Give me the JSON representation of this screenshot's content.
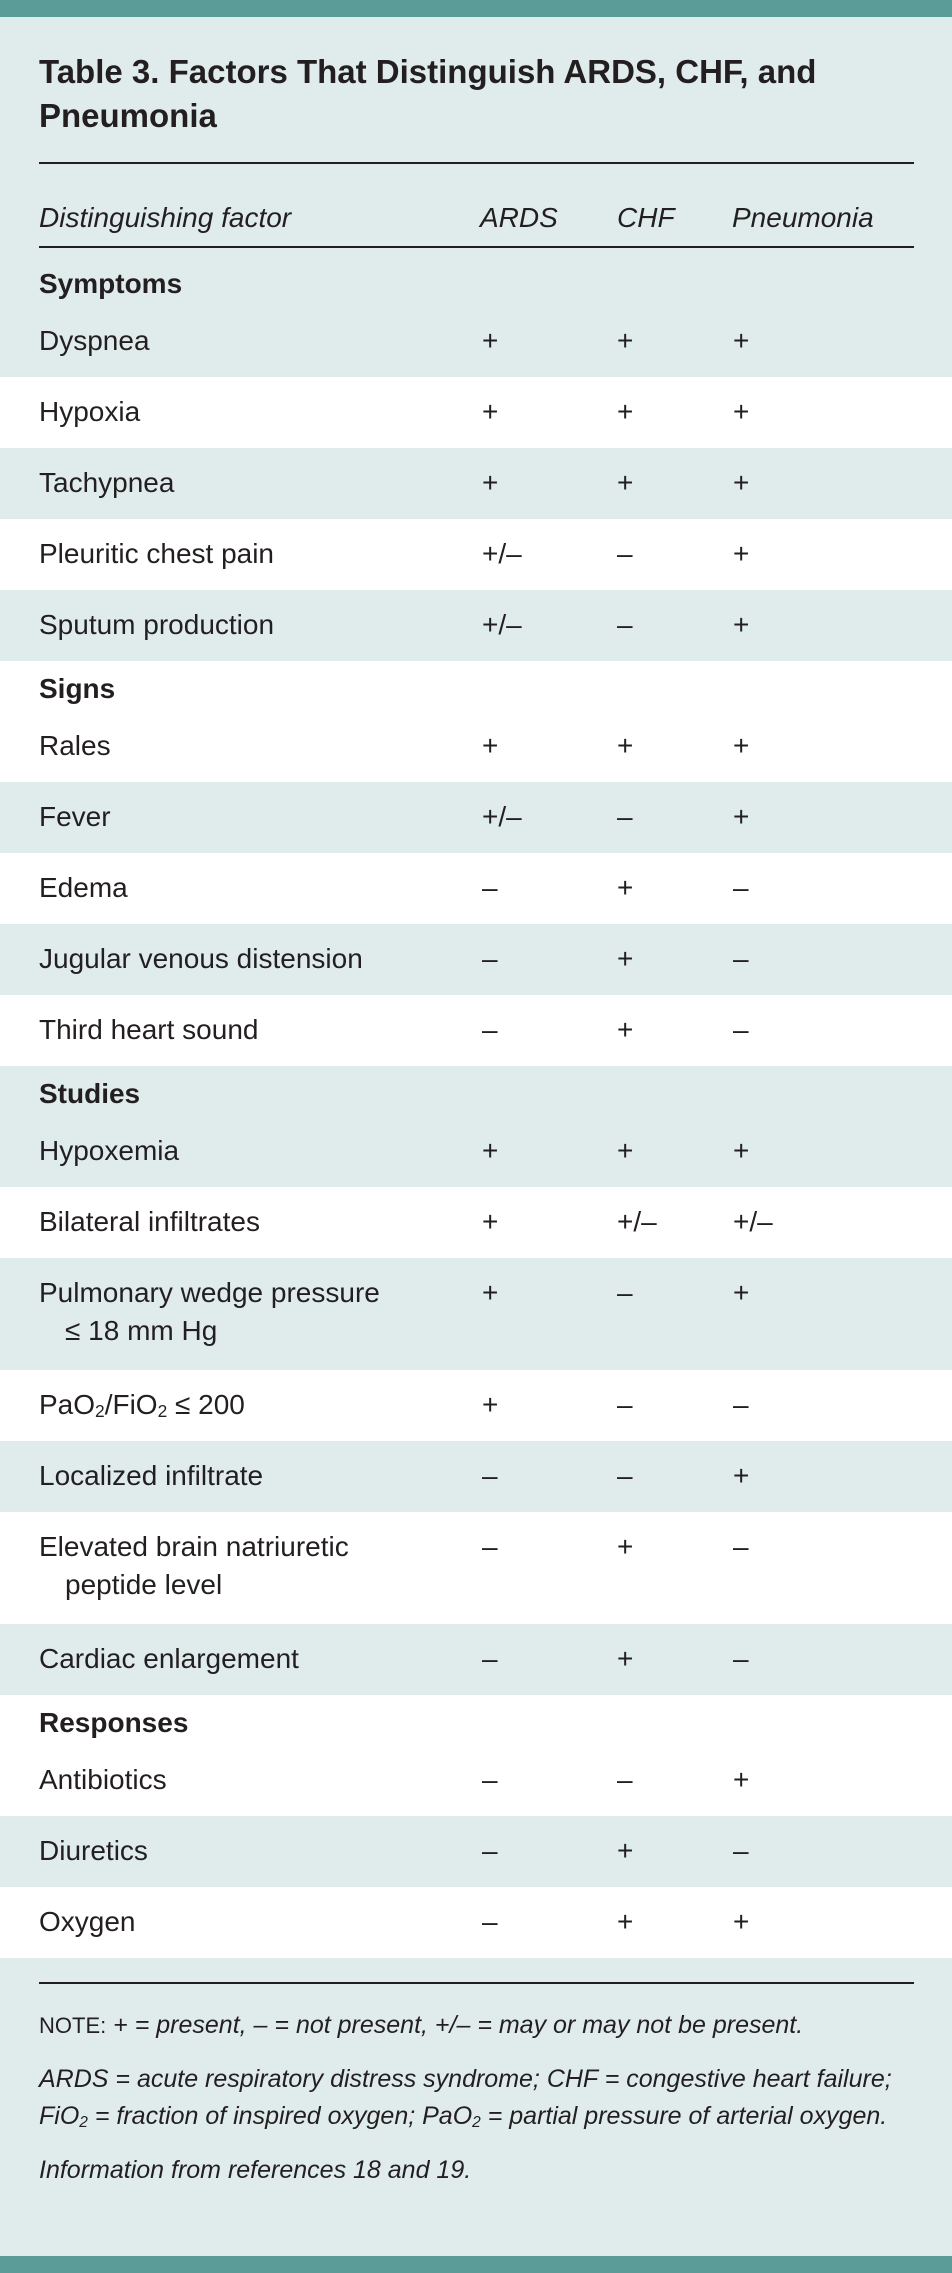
{
  "title": "Table 3. Factors That Distinguish ARDS, CHF, and Pneumonia",
  "columns": [
    "Distinguishing factor",
    "ARDS",
    "CHF",
    "Pneumonia"
  ],
  "sections": [
    {
      "name": "Symptoms",
      "rows": [
        {
          "factor": "Dyspnea",
          "values": [
            "+",
            "+",
            "+"
          ]
        },
        {
          "factor": "Hypoxia",
          "values": [
            "+",
            "+",
            "+"
          ]
        },
        {
          "factor": "Tachypnea",
          "values": [
            "+",
            "+",
            "+"
          ]
        },
        {
          "factor": "Pleuritic chest pain",
          "values": [
            "+/–",
            "–",
            "+"
          ]
        },
        {
          "factor": "Sputum production",
          "values": [
            "+/–",
            "–",
            "+"
          ]
        }
      ]
    },
    {
      "name": "Signs",
      "rows": [
        {
          "factor": "Rales",
          "values": [
            "+",
            "+",
            "+"
          ]
        },
        {
          "factor": "Fever",
          "values": [
            "+/–",
            "–",
            "+"
          ]
        },
        {
          "factor": "Edema",
          "values": [
            "–",
            "+",
            "–"
          ]
        },
        {
          "factor": "Jugular venous distension",
          "values": [
            "–",
            "+",
            "–"
          ]
        },
        {
          "factor": "Third heart sound",
          "values": [
            "–",
            "+",
            "–"
          ]
        }
      ]
    },
    {
      "name": "Studies",
      "rows": [
        {
          "factor": "Hypoxemia",
          "values": [
            "+",
            "+",
            "+"
          ]
        },
        {
          "factor": "Bilateral infiltrates",
          "values": [
            "+",
            "+/–",
            "+/–"
          ]
        },
        {
          "factor": "Pulmonary wedge pressure",
          "factor_cont": "≤ 18 mm Hg",
          "values": [
            "+",
            "–",
            "+"
          ]
        },
        {
          "factor_parts": [
            {
              "t": "PaO"
            },
            {
              "sub": "2"
            },
            {
              "t": "/FiO"
            },
            {
              "sub": "2"
            },
            {
              "t": " ≤ 200"
            }
          ],
          "values": [
            "+",
            "–",
            "–"
          ]
        },
        {
          "factor": "Localized infiltrate",
          "values": [
            "–",
            "–",
            "+"
          ]
        },
        {
          "factor": "Elevated brain natriuretic",
          "factor_cont": "peptide level",
          "values": [
            "–",
            "+",
            "–"
          ]
        },
        {
          "factor": "Cardiac enlargement",
          "values": [
            "–",
            "+",
            "–"
          ]
        }
      ]
    },
    {
      "name": "Responses",
      "rows": [
        {
          "factor": "Antibiotics",
          "values": [
            "–",
            "–",
            "+"
          ]
        },
        {
          "factor": "Diuretics",
          "values": [
            "–",
            "+",
            "–"
          ]
        },
        {
          "factor": "Oxygen",
          "values": [
            "–",
            "+",
            "+"
          ]
        }
      ]
    }
  ],
  "notes": {
    "note_label": "NOTE:",
    "note_text": " + = present, – = not present, +/– = may or may not be present.",
    "abbrev_parts": [
      {
        "t": "ARDS = acute respiratory distress syndrome; CHF = congestive heart failure; FiO"
      },
      {
        "sub": "2"
      },
      {
        "t": " = fraction of inspired oxygen; PaO"
      },
      {
        "sub": "2"
      },
      {
        "t": " = partial pressure of arterial oxygen."
      }
    ],
    "source": "Information from references 18 and 19."
  },
  "colors": {
    "accent_bar": "#5b9b98",
    "background": "#e0ecec",
    "row_white": "#ffffff",
    "text": "#231f20"
  }
}
